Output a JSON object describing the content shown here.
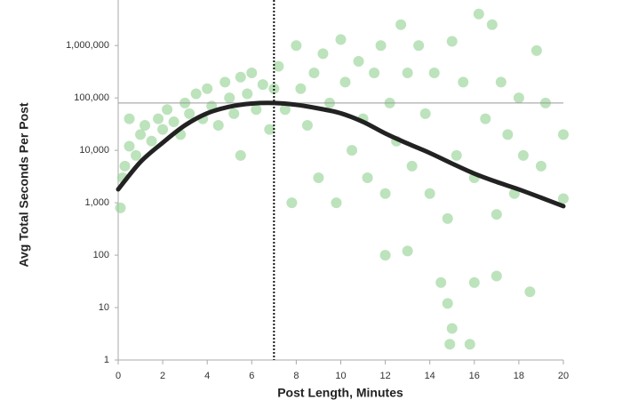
{
  "chart_data": {
    "type": "scatter",
    "x_label": "Post Length, Minutes",
    "y_label": "Avg Total Seconds Per Post",
    "log_y": true,
    "xlim": [
      0,
      20
    ],
    "xticks": [
      0,
      2,
      4,
      6,
      8,
      10,
      12,
      14,
      16,
      18,
      20
    ],
    "ylim": [
      1,
      5000000
    ],
    "yticks": [
      1,
      10,
      100,
      {
        "value": 1000,
        "label": "1,000"
      },
      {
        "value": 10000,
        "label": "10,000"
      },
      {
        "value": 100000,
        "label": "100,000"
      },
      {
        "value": 1000000,
        "label": "1,000,000"
      }
    ],
    "reference_x": 7,
    "reference_y": 80000,
    "points": {
      "color": "#8fd18f",
      "x": [
        0.1,
        0.2,
        0.3,
        0.5,
        0.5,
        0.8,
        1,
        1.2,
        1.5,
        1.8,
        2,
        2.2,
        2.5,
        2.8,
        3,
        3.2,
        3.5,
        3.8,
        4,
        4.2,
        4.5,
        4.8,
        5,
        5.2,
        5.5,
        5.5,
        5.8,
        6,
        6.2,
        6.5,
        6.8,
        7,
        7.2,
        7.5,
        7.8,
        8,
        8.2,
        8.5,
        8.8,
        9,
        9.2,
        9.5,
        9.8,
        10,
        10.2,
        10.5,
        10.8,
        11,
        11.2,
        11.5,
        11.8,
        12,
        12,
        12.2,
        12.5,
        12.7,
        13,
        13,
        13.2,
        13.5,
        13.8,
        14,
        14.2,
        14.5,
        14.8,
        14.8,
        14.9,
        15,
        15,
        15.2,
        15.5,
        15.8,
        16,
        16,
        16.2,
        16.5,
        16.8,
        17,
        17,
        17.2,
        17.5,
        17.8,
        18,
        18.2,
        18.5,
        18.8,
        19,
        19.2,
        20,
        20
      ],
      "values": [
        800,
        3000,
        5000,
        12000,
        40000,
        8000,
        20000,
        30000,
        15000,
        40000,
        25000,
        60000,
        35000,
        20000,
        80000,
        50000,
        120000,
        40000,
        150000,
        70000,
        30000,
        200000,
        100000,
        50000,
        250000,
        8000,
        120000,
        300000,
        60000,
        180000,
        25000,
        150000,
        400000,
        60000,
        1000,
        1000000,
        150000,
        30000,
        300000,
        3000,
        700000,
        80000,
        1000,
        1300000,
        200000,
        10000,
        500000,
        40000,
        3000,
        300000,
        1000000,
        100,
        1500,
        80000,
        15000,
        2500000,
        300000,
        120,
        5000,
        1000000,
        50000,
        1500,
        300000,
        30,
        12,
        500,
        2,
        4,
        1200000,
        8000,
        200000,
        2,
        3000,
        30,
        4000000,
        40000,
        2500000,
        40,
        600,
        200000,
        20000,
        1500,
        100000,
        8000,
        20,
        800000,
        5000,
        80000,
        20000,
        1200
      ]
    },
    "trend": {
      "color": "#222222",
      "x": [
        0,
        1,
        2,
        3,
        4,
        5,
        6,
        7,
        8,
        9,
        10,
        11,
        12,
        13,
        14,
        15,
        16,
        17,
        18,
        19,
        20
      ],
      "values": [
        1800,
        6000,
        14000,
        30000,
        51000,
        68000,
        78000,
        80000,
        74000,
        63000,
        51000,
        35000,
        21000,
        13500,
        8900,
        5600,
        3600,
        2500,
        1800,
        1250,
        860
      ]
    }
  }
}
